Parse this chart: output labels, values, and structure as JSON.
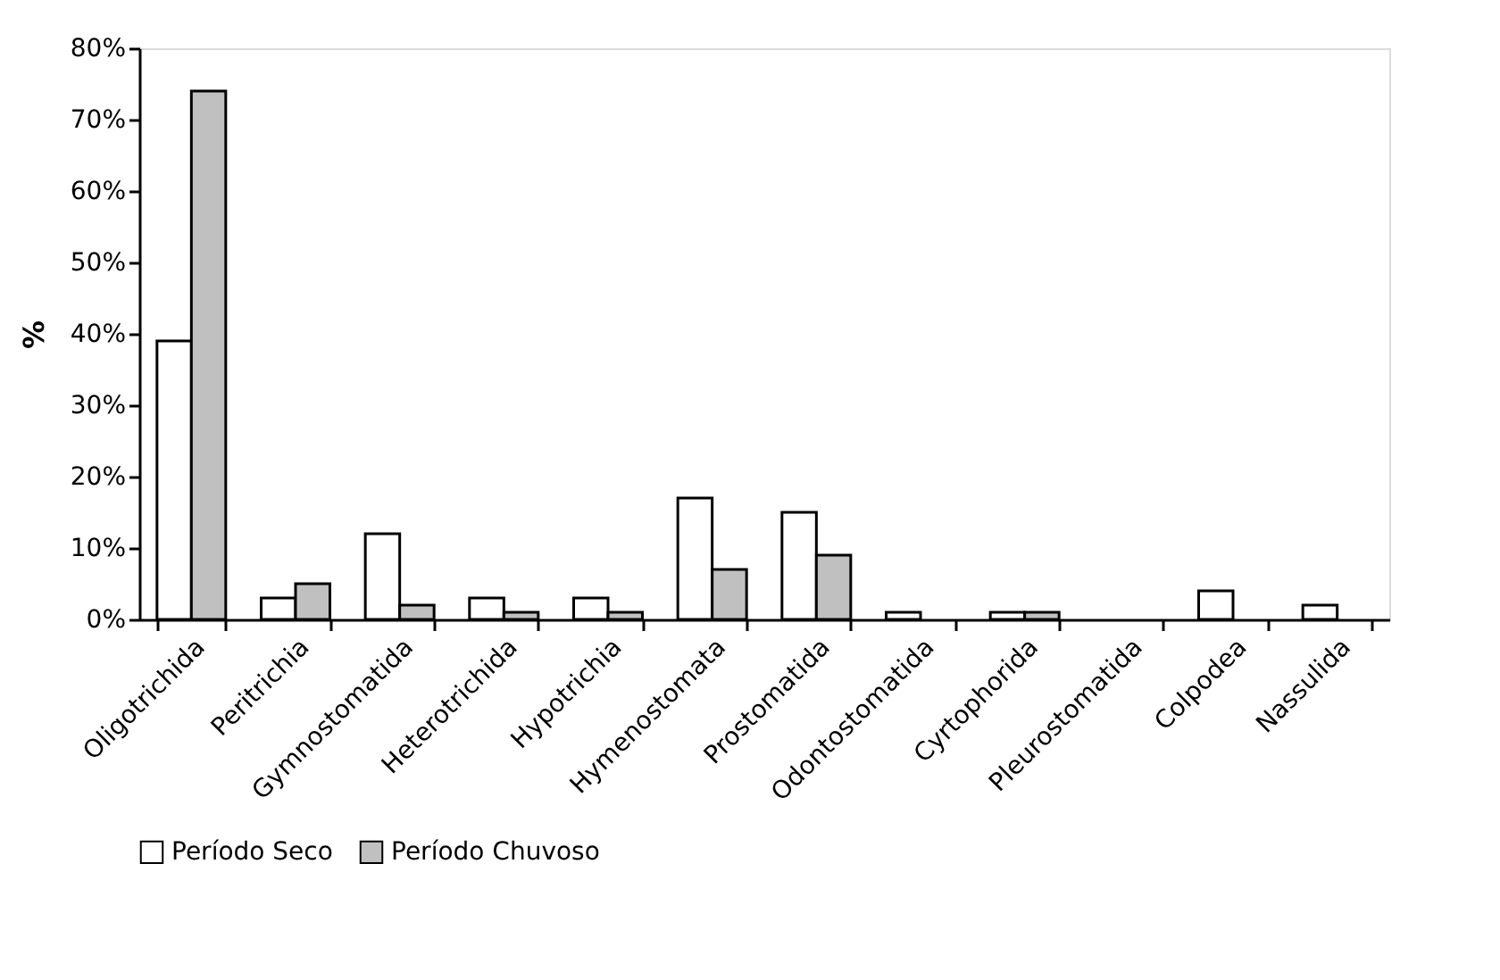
{
  "chart_data": {
    "type": "bar",
    "ylabel": "%",
    "categories": [
      "Oligotrichida",
      "Peritrichia",
      "Gymnostomatida",
      "Heterotrichida",
      "Hypotrichia",
      "Hymenostomata",
      "Prostomatida",
      "Odontostomatida",
      "Cyrtophorida",
      "Pleurostomatida",
      "Colpodea",
      "Nassulida"
    ],
    "series": [
      {
        "name": "Período Seco",
        "color": "#ffffff",
        "values": [
          39,
          3,
          12,
          3,
          3,
          17,
          15,
          1,
          1,
          0,
          4,
          2
        ]
      },
      {
        "name": "Período Chuvoso",
        "color": "#c0c0c0",
        "values": [
          74,
          5,
          2,
          1,
          1,
          7,
          9,
          0,
          1,
          0,
          0,
          0
        ]
      }
    ],
    "ylim": [
      0,
      80
    ],
    "yticks": [
      {
        "value": 0,
        "label": "0%"
      },
      {
        "value": 10,
        "label": "10%"
      },
      {
        "value": 20,
        "label": "20%"
      },
      {
        "value": 30,
        "label": "30%"
      },
      {
        "value": 40,
        "label": "40%"
      },
      {
        "value": 50,
        "label": "50%"
      },
      {
        "value": 60,
        "label": "60%"
      },
      {
        "value": 70,
        "label": "70%"
      },
      {
        "value": 80,
        "label": "80%"
      }
    ],
    "grid": false,
    "legend": "bottom"
  }
}
